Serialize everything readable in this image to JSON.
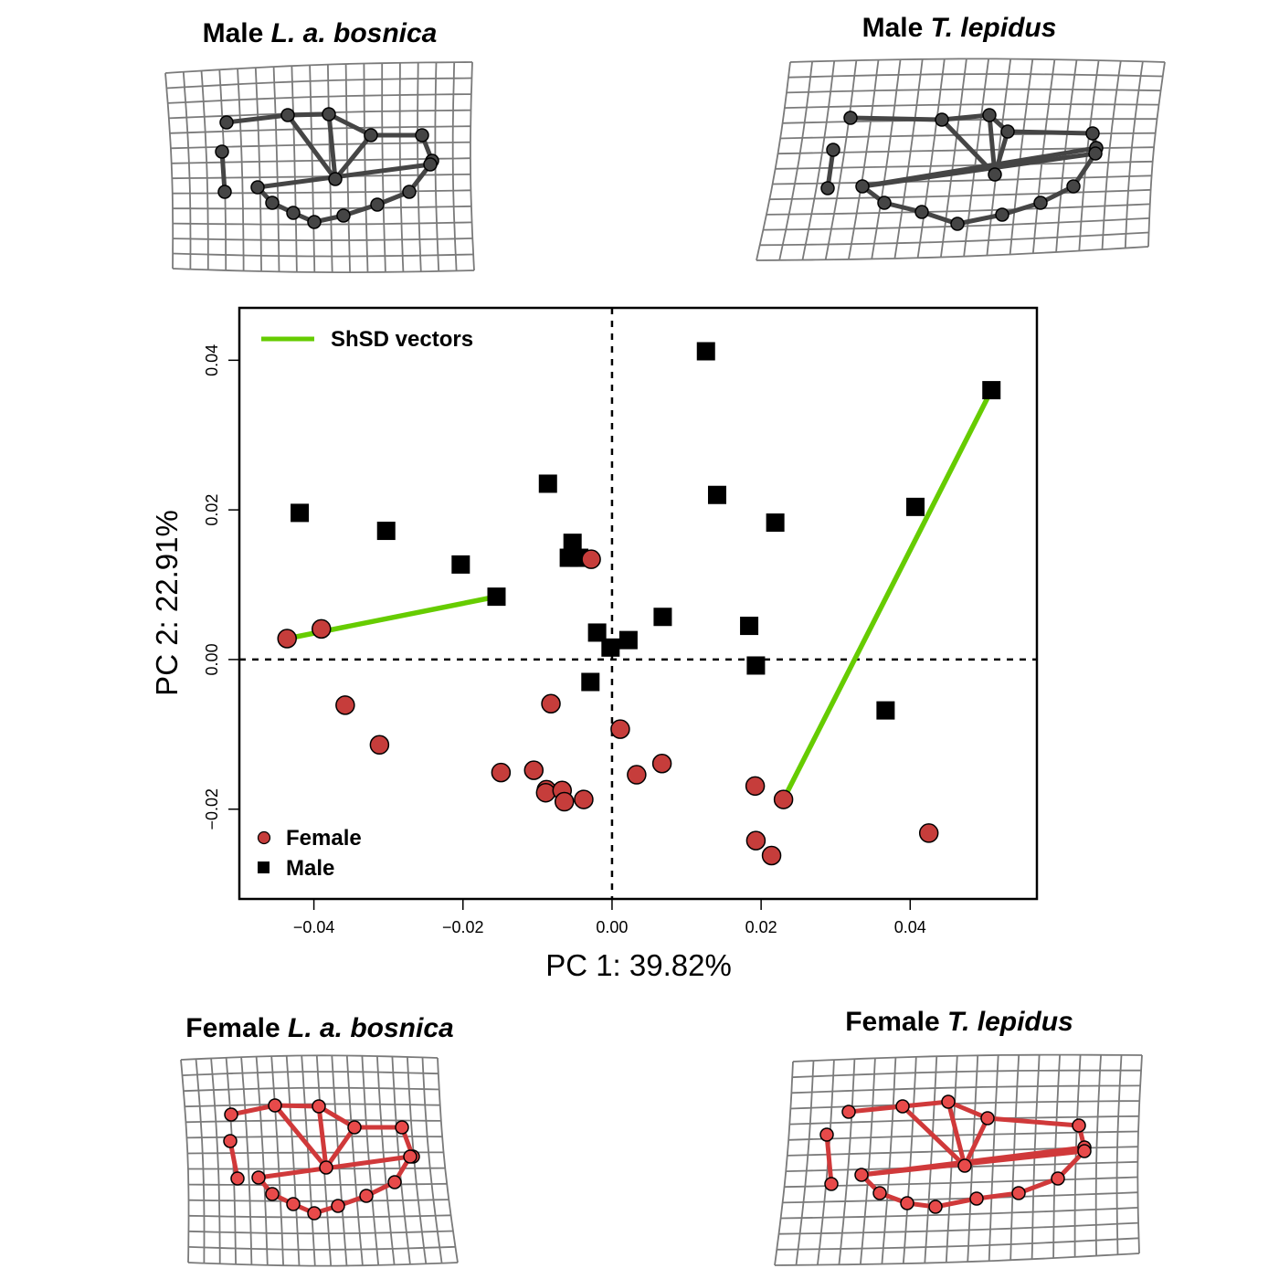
{
  "panels": {
    "top_left": {
      "label_prefix": "Male",
      "label_species": "L. a. bosnica"
    },
    "top_right": {
      "label_prefix": "Male",
      "label_species": "T. lepidus"
    },
    "bottom_left": {
      "label_prefix": "Female",
      "label_species": "L. a. bosnica"
    },
    "bottom_right": {
      "label_prefix": "Female",
      "label_species": "T. lepidus"
    }
  },
  "colors": {
    "female": "#c63d3b",
    "male": "#000000",
    "shsd": "#66cc00",
    "grid": "#7a7a7a",
    "male_wireframe": "#454545",
    "female_wireframe": "#d0393a",
    "female_landmark": "#e84a4a"
  },
  "chart_data": {
    "type": "scatter",
    "xlabel": "PC 1: 39.82%",
    "ylabel": "PC 2: 22.91%",
    "xlim": [
      -0.05,
      0.057
    ],
    "ylim": [
      -0.032,
      0.047
    ],
    "xticks": [
      -0.04,
      -0.02,
      0.0,
      0.02,
      0.04
    ],
    "yticks": [
      -0.02,
      0.0,
      0.02,
      0.04
    ],
    "xtick_labels": [
      "−0.04",
      "−0.02",
      "0.00",
      "0.02",
      "0.04"
    ],
    "ytick_labels": [
      "−0.02",
      "0.00",
      "0.02",
      "0.04"
    ],
    "reference_lines": {
      "x": 0,
      "y": 0,
      "style": "dashed"
    },
    "legend": {
      "line": {
        "label": "ShSD vectors",
        "placement": "top-left"
      },
      "points_placement": "bottom-left"
    },
    "series": [
      {
        "name": "Female",
        "marker": "circle",
        "points": [
          [
            -0.0436,
            0.0028
          ],
          [
            -0.039,
            0.0041
          ],
          [
            -0.0358,
            -0.0061
          ],
          [
            -0.0312,
            -0.0114
          ],
          [
            -0.0149,
            -0.0151
          ],
          [
            -0.0105,
            -0.0148
          ],
          [
            -0.0088,
            -0.0174
          ],
          [
            -0.0089,
            -0.0178
          ],
          [
            -0.0067,
            -0.0175
          ],
          [
            -0.0064,
            -0.019
          ],
          [
            -0.0038,
            -0.0187
          ],
          [
            -0.0082,
            -0.0059
          ],
          [
            -0.0028,
            0.0134
          ],
          [
            0.0011,
            -0.0093
          ],
          [
            0.0033,
            -0.0154
          ],
          [
            0.0067,
            -0.0139
          ],
          [
            0.0192,
            -0.0169
          ],
          [
            0.0193,
            -0.0242
          ],
          [
            0.0214,
            -0.0262
          ],
          [
            0.023,
            -0.0187
          ],
          [
            0.0425,
            -0.0232
          ]
        ]
      },
      {
        "name": "Male",
        "marker": "square",
        "points": [
          [
            -0.0419,
            0.0196
          ],
          [
            -0.0303,
            0.0172
          ],
          [
            -0.0203,
            0.0127
          ],
          [
            -0.0155,
            0.0084
          ],
          [
            -0.0086,
            0.0235
          ],
          [
            -0.0053,
            0.0156
          ],
          [
            -0.0058,
            0.0136
          ],
          [
            -0.0044,
            0.0136
          ],
          [
            -0.002,
            0.0036
          ],
          [
            -0.0029,
            -0.003
          ],
          [
            -0.0002,
            0.0016
          ],
          [
            0.0022,
            0.0026
          ],
          [
            0.0068,
            0.0057
          ],
          [
            0.0126,
            0.0412
          ],
          [
            0.0141,
            0.022
          ],
          [
            0.0184,
            0.0045
          ],
          [
            0.0193,
            -0.0008
          ],
          [
            0.0219,
            0.0183
          ],
          [
            0.0367,
            -0.0068
          ],
          [
            0.0407,
            0.0204
          ],
          [
            0.0509,
            0.036
          ]
        ]
      }
    ],
    "vectors": [
      {
        "from": [
          -0.0436,
          0.0028
        ],
        "to": [
          -0.0155,
          0.0084
        ]
      },
      {
        "from": [
          0.023,
          -0.0187
        ],
        "to": [
          0.0509,
          0.036
        ]
      }
    ]
  }
}
